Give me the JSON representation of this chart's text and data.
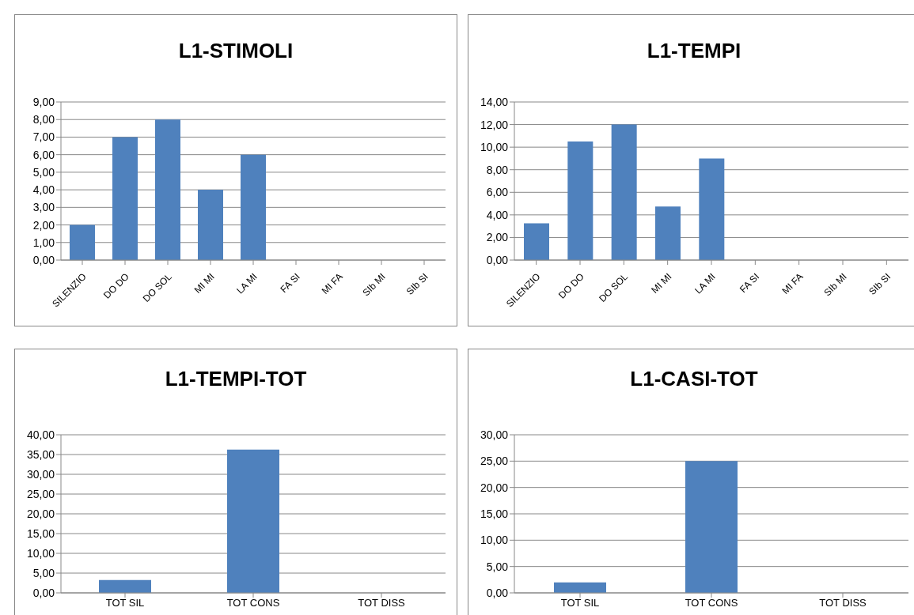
{
  "chart_data": [
    {
      "type": "bar",
      "title": "L1-STIMOLI",
      "categories": [
        "SILENZIO",
        "DO DO",
        "DO SOL",
        "MI MI",
        "LA MI",
        "FA SI",
        "MI FA",
        "SIb MI",
        "SIb SI"
      ],
      "values": [
        2,
        7,
        8,
        4,
        6,
        0,
        0,
        0,
        0
      ],
      "color": "#4f81bd",
      "ylim": [
        0,
        9
      ],
      "yticks": [
        {
          "value": 0,
          "label": "0,00"
        },
        {
          "value": 1,
          "label": "1,00"
        },
        {
          "value": 2,
          "label": "2,00"
        },
        {
          "value": 3,
          "label": "3,00"
        },
        {
          "value": 4,
          "label": "4,00"
        },
        {
          "value": 5,
          "label": "5,00"
        },
        {
          "value": 6,
          "label": "6,00"
        },
        {
          "value": 7,
          "label": "7,00"
        },
        {
          "value": 8,
          "label": "8,00"
        },
        {
          "value": 9,
          "label": "9,00"
        }
      ],
      "grid": "y"
    },
    {
      "type": "bar",
      "title": "L1-TEMPI",
      "categories": [
        "SILENZIO",
        "DO DO",
        "DO SOL",
        "MI MI",
        "LA MI",
        "FA SI",
        "MI FA",
        "SIb MI",
        "SIb SI"
      ],
      "values": [
        3.25,
        10.5,
        12,
        4.75,
        9,
        0,
        0,
        0,
        0
      ],
      "color": "#4f81bd",
      "ylim": [
        0,
        14
      ],
      "yticks": [
        {
          "value": 0,
          "label": "0,00"
        },
        {
          "value": 2,
          "label": "2,00"
        },
        {
          "value": 4,
          "label": "4,00"
        },
        {
          "value": 6,
          "label": "6,00"
        },
        {
          "value": 8,
          "label": "8,00"
        },
        {
          "value": 10,
          "label": "10,00"
        },
        {
          "value": 12,
          "label": "12,00"
        },
        {
          "value": 14,
          "label": "14,00"
        }
      ],
      "grid": "y"
    },
    {
      "type": "bar",
      "title": "L1-TEMPI-TOT",
      "categories": [
        "TOT SIL",
        "TOT CONS",
        "TOT DISS"
      ],
      "values": [
        3.25,
        36.25,
        0
      ],
      "color": "#4f81bd",
      "ylim": [
        0,
        40
      ],
      "yticks": [
        {
          "value": 0,
          "label": "0,00"
        },
        {
          "value": 5,
          "label": "5,00"
        },
        {
          "value": 10,
          "label": "10,00"
        },
        {
          "value": 15,
          "label": "15,00"
        },
        {
          "value": 20,
          "label": "20,00"
        },
        {
          "value": 25,
          "label": "25,00"
        },
        {
          "value": 30,
          "label": "30,00"
        },
        {
          "value": 35,
          "label": "35,00"
        },
        {
          "value": 40,
          "label": "40,00"
        }
      ],
      "grid": "y"
    },
    {
      "type": "bar",
      "title": "L1-CASI-TOT",
      "categories": [
        "TOT SIL",
        "TOT CONS",
        "TOT DISS"
      ],
      "values": [
        2,
        25,
        0
      ],
      "color": "#4f81bd",
      "ylim": [
        0,
        30
      ],
      "yticks": [
        {
          "value": 0,
          "label": "0,00"
        },
        {
          "value": 5,
          "label": "5,00"
        },
        {
          "value": 10,
          "label": "10,00"
        },
        {
          "value": 15,
          "label": "15,00"
        },
        {
          "value": 20,
          "label": "20,00"
        },
        {
          "value": 25,
          "label": "25,00"
        },
        {
          "value": 30,
          "label": "30,00"
        }
      ],
      "grid": "y"
    }
  ]
}
